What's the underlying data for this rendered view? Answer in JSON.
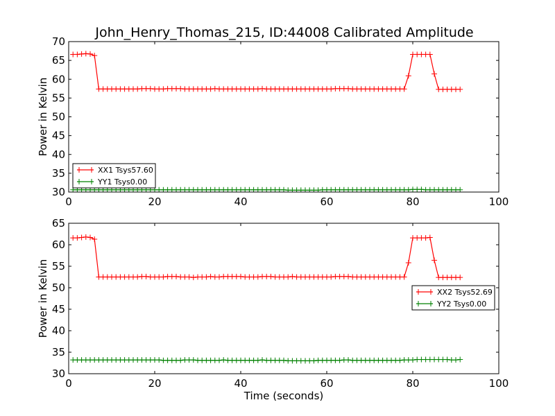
{
  "chart_data": {
    "type": "line",
    "title": "John_Henry_Thomas_215, ID:44008 Calibrated Amplitude",
    "xlabel": "Time (seconds)",
    "x": [
      1,
      2,
      3,
      4,
      5,
      6,
      7,
      8,
      9,
      10,
      11,
      12,
      13,
      14,
      15,
      16,
      17,
      18,
      19,
      20,
      21,
      22,
      23,
      24,
      25,
      26,
      27,
      28,
      29,
      30,
      31,
      32,
      33,
      34,
      35,
      36,
      37,
      38,
      39,
      40,
      41,
      42,
      43,
      44,
      45,
      46,
      47,
      48,
      49,
      50,
      51,
      52,
      53,
      54,
      55,
      56,
      57,
      58,
      59,
      60,
      61,
      62,
      63,
      64,
      65,
      66,
      67,
      68,
      69,
      70,
      71,
      72,
      73,
      74,
      75,
      76,
      77,
      78,
      79,
      80,
      81,
      82,
      83,
      84,
      85,
      86,
      87,
      88,
      89,
      90,
      91
    ],
    "panels": [
      {
        "ylabel": "Power in Kelvin",
        "xlim": [
          0,
          100
        ],
        "ylim": [
          30,
          70
        ],
        "xticks": [
          "0",
          "20",
          "40",
          "60",
          "80",
          "100"
        ],
        "yticks": [
          "30",
          "35",
          "40",
          "45",
          "50",
          "55",
          "60",
          "65",
          "70"
        ],
        "legend_position": "lower-left",
        "series": [
          {
            "name": "XX1 Tsys57.60",
            "color": "#ff0000",
            "values": [
              66.6,
              66.6,
              66.7,
              66.8,
              66.7,
              66.3,
              57.4,
              57.4,
              57.4,
              57.4,
              57.4,
              57.4,
              57.4,
              57.4,
              57.4,
              57.4,
              57.5,
              57.5,
              57.5,
              57.4,
              57.4,
              57.4,
              57.5,
              57.5,
              57.5,
              57.5,
              57.4,
              57.4,
              57.4,
              57.4,
              57.4,
              57.4,
              57.4,
              57.5,
              57.4,
              57.4,
              57.4,
              57.4,
              57.4,
              57.4,
              57.4,
              57.4,
              57.4,
              57.4,
              57.5,
              57.4,
              57.4,
              57.4,
              57.4,
              57.4,
              57.4,
              57.4,
              57.4,
              57.4,
              57.4,
              57.4,
              57.4,
              57.4,
              57.4,
              57.4,
              57.4,
              57.5,
              57.5,
              57.5,
              57.5,
              57.4,
              57.4,
              57.4,
              57.4,
              57.4,
              57.4,
              57.4,
              57.4,
              57.4,
              57.4,
              57.4,
              57.4,
              57.4,
              60.9,
              66.6,
              66.6,
              66.6,
              66.6,
              66.6,
              61.4,
              57.3,
              57.3,
              57.3,
              57.3,
              57.3,
              57.3
            ]
          },
          {
            "name": "YY1 Tsys0.00",
            "color": "#008000",
            "values": [
              30.6,
              30.6,
              30.6,
              30.6,
              30.6,
              30.6,
              30.6,
              30.6,
              30.6,
              30.6,
              30.6,
              30.6,
              30.6,
              30.6,
              30.6,
              30.6,
              30.6,
              30.6,
              30.6,
              30.6,
              30.6,
              30.6,
              30.6,
              30.6,
              30.6,
              30.6,
              30.6,
              30.6,
              30.6,
              30.6,
              30.6,
              30.6,
              30.6,
              30.6,
              30.6,
              30.6,
              30.6,
              30.6,
              30.6,
              30.6,
              30.6,
              30.6,
              30.6,
              30.6,
              30.6,
              30.6,
              30.6,
              30.6,
              30.6,
              30.6,
              30.5,
              30.5,
              30.5,
              30.5,
              30.5,
              30.5,
              30.5,
              30.5,
              30.6,
              30.6,
              30.6,
              30.6,
              30.6,
              30.6,
              30.6,
              30.6,
              30.6,
              30.6,
              30.6,
              30.6,
              30.6,
              30.6,
              30.6,
              30.6,
              30.6,
              30.6,
              30.6,
              30.6,
              30.6,
              30.7,
              30.7,
              30.7,
              30.6,
              30.6,
              30.6,
              30.6,
              30.6,
              30.6,
              30.6,
              30.6,
              30.6
            ]
          }
        ]
      },
      {
        "ylabel": "Power in Kelvin",
        "xlim": [
          0,
          100
        ],
        "ylim": [
          30,
          65
        ],
        "xticks": [
          "0",
          "20",
          "40",
          "60",
          "80",
          "100"
        ],
        "yticks": [
          "30",
          "35",
          "40",
          "45",
          "50",
          "55",
          "60",
          "65"
        ],
        "legend_position": "center-right",
        "series": [
          {
            "name": "XX2 Tsys52.69",
            "color": "#ff0000",
            "values": [
              61.6,
              61.6,
              61.7,
              61.8,
              61.7,
              61.3,
              52.5,
              52.5,
              52.5,
              52.5,
              52.5,
              52.5,
              52.5,
              52.5,
              52.5,
              52.5,
              52.6,
              52.6,
              52.5,
              52.5,
              52.5,
              52.5,
              52.6,
              52.6,
              52.6,
              52.5,
              52.5,
              52.5,
              52.4,
              52.5,
              52.5,
              52.5,
              52.6,
              52.5,
              52.5,
              52.6,
              52.6,
              52.6,
              52.6,
              52.6,
              52.5,
              52.5,
              52.5,
              52.5,
              52.6,
              52.6,
              52.6,
              52.5,
              52.5,
              52.5,
              52.5,
              52.6,
              52.5,
              52.5,
              52.5,
              52.5,
              52.5,
              52.5,
              52.5,
              52.5,
              52.5,
              52.6,
              52.6,
              52.6,
              52.6,
              52.5,
              52.5,
              52.5,
              52.5,
              52.5,
              52.5,
              52.5,
              52.5,
              52.5,
              52.5,
              52.5,
              52.5,
              52.5,
              55.8,
              61.6,
              61.6,
              61.6,
              61.6,
              61.7,
              56.4,
              52.4,
              52.4,
              52.4,
              52.4,
              52.4,
              52.4
            ]
          },
          {
            "name": "YY2 Tsys0.00",
            "color": "#008000",
            "values": [
              33.2,
              33.2,
              33.2,
              33.2,
              33.2,
              33.2,
              33.2,
              33.2,
              33.2,
              33.2,
              33.2,
              33.2,
              33.2,
              33.2,
              33.2,
              33.2,
              33.2,
              33.2,
              33.2,
              33.2,
              33.2,
              33.1,
              33.1,
              33.1,
              33.1,
              33.1,
              33.2,
              33.2,
              33.2,
              33.1,
              33.1,
              33.1,
              33.1,
              33.1,
              33.1,
              33.2,
              33.1,
              33.1,
              33.1,
              33.1,
              33.1,
              33.1,
              33.1,
              33.1,
              33.2,
              33.1,
              33.1,
              33.1,
              33.1,
              33.1,
              33.0,
              33.0,
              33.0,
              33.0,
              33.0,
              33.0,
              33.0,
              33.1,
              33.1,
              33.1,
              33.1,
              33.1,
              33.1,
              33.2,
              33.2,
              33.1,
              33.1,
              33.1,
              33.1,
              33.1,
              33.1,
              33.1,
              33.1,
              33.1,
              33.1,
              33.1,
              33.1,
              33.2,
              33.2,
              33.2,
              33.3,
              33.3,
              33.3,
              33.3,
              33.3,
              33.3,
              33.3,
              33.3,
              33.2,
              33.2,
              33.3
            ]
          }
        ]
      }
    ]
  }
}
